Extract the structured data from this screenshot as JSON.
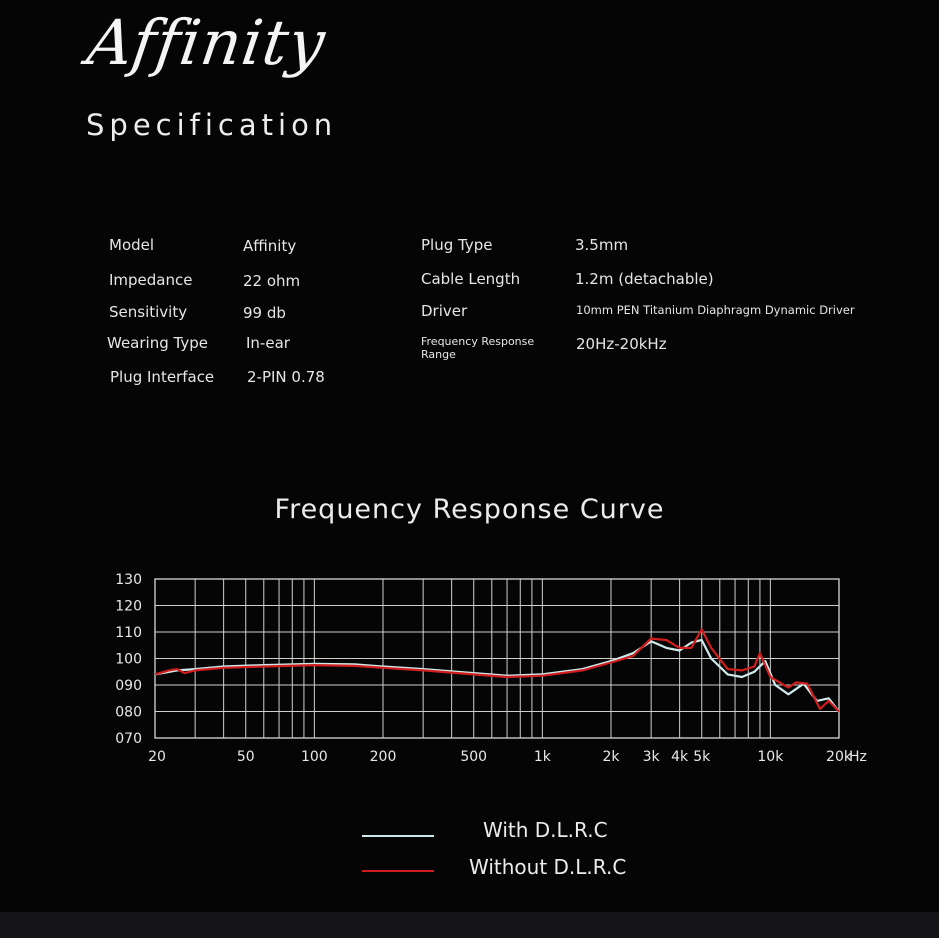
{
  "brand": "Affinity",
  "heading": "Specification",
  "specs_left": [
    {
      "label": "Model",
      "value": "Affinity"
    },
    {
      "label": "Impedance",
      "value": "22 ohm"
    },
    {
      "label": "Sensitivity",
      "value": "99 db"
    },
    {
      "label": "Wearing Type",
      "value": "In-ear"
    },
    {
      "label": "Plug Interface",
      "value": "2-PIN  0.78"
    }
  ],
  "specs_right": [
    {
      "label": "Plug Type",
      "value": "3.5mm"
    },
    {
      "label": "Cable Length",
      "value": "1.2m (detachable)"
    },
    {
      "label": "Driver",
      "value": "10mm PEN Titanium Diaphragm Dynamic Driver"
    },
    {
      "label": "Frequency Response Range",
      "value": "20Hz-20kHz"
    }
  ],
  "chart_data": {
    "type": "line",
    "title": "Frequency Response Curve",
    "x_scale": "log",
    "xlim": [
      20,
      20000
    ],
    "ylim": [
      70,
      130
    ],
    "grid": true,
    "x_ticks": [
      {
        "value": 20,
        "label": "20"
      },
      {
        "value": 50,
        "label": "50"
      },
      {
        "value": 100,
        "label": "100"
      },
      {
        "value": 200,
        "label": "200"
      },
      {
        "value": 500,
        "label": "500"
      },
      {
        "value": 1000,
        "label": "1k"
      },
      {
        "value": 2000,
        "label": "2k"
      },
      {
        "value": 3000,
        "label": "3k"
      },
      {
        "value": 4000,
        "label": "4k"
      },
      {
        "value": 5000,
        "label": "5k"
      },
      {
        "value": 10000,
        "label": "10k"
      },
      {
        "value": 20000,
        "label": "20k"
      }
    ],
    "x_unit": "Hz",
    "y_ticks": [
      {
        "value": 130,
        "label": "130"
      },
      {
        "value": 120,
        "label": "120"
      },
      {
        "value": 110,
        "label": "110"
      },
      {
        "value": 100,
        "label": "100"
      },
      {
        "value": 90,
        "label": "090"
      },
      {
        "value": 80,
        "label": "080"
      },
      {
        "value": 70,
        "label": "070"
      }
    ],
    "legend_position": "bottom-center",
    "series": [
      {
        "name": "With D.L.R.C",
        "color": "#cfe9ea",
        "points": [
          [
            20,
            94
          ],
          [
            25,
            95.5
          ],
          [
            30,
            96
          ],
          [
            40,
            97
          ],
          [
            60,
            97.5
          ],
          [
            100,
            98
          ],
          [
            150,
            97.8
          ],
          [
            200,
            97
          ],
          [
            300,
            96
          ],
          [
            500,
            94.5
          ],
          [
            700,
            93.5
          ],
          [
            1000,
            94
          ],
          [
            1500,
            96
          ],
          [
            2000,
            99
          ],
          [
            2500,
            102
          ],
          [
            3000,
            106.5
          ],
          [
            3500,
            104
          ],
          [
            4000,
            103
          ],
          [
            4500,
            106
          ],
          [
            5000,
            107
          ],
          [
            5500,
            100
          ],
          [
            6500,
            94
          ],
          [
            7500,
            93
          ],
          [
            8500,
            95
          ],
          [
            9500,
            99
          ],
          [
            10500,
            90
          ],
          [
            12000,
            86.5
          ],
          [
            14000,
            90.5
          ],
          [
            16000,
            84
          ],
          [
            18000,
            85
          ],
          [
            20000,
            80
          ]
        ]
      },
      {
        "name": "Without D.L.R.C",
        "color": "#d11d1d",
        "points": [
          [
            20,
            94
          ],
          [
            23,
            95.5
          ],
          [
            25,
            96
          ],
          [
            27,
            94.5
          ],
          [
            30,
            95.5
          ],
          [
            40,
            96.5
          ],
          [
            60,
            97
          ],
          [
            100,
            97.5
          ],
          [
            150,
            97.2
          ],
          [
            200,
            96.5
          ],
          [
            300,
            95.5
          ],
          [
            500,
            94
          ],
          [
            700,
            93
          ],
          [
            1000,
            93.5
          ],
          [
            1500,
            95.5
          ],
          [
            2000,
            98.5
          ],
          [
            2500,
            101
          ],
          [
            3000,
            107.5
          ],
          [
            3500,
            107
          ],
          [
            4000,
            104
          ],
          [
            4500,
            104
          ],
          [
            5000,
            111
          ],
          [
            5500,
            104
          ],
          [
            6500,
            96
          ],
          [
            7500,
            95.5
          ],
          [
            8500,
            97
          ],
          [
            9000,
            102
          ],
          [
            10000,
            93
          ],
          [
            12000,
            89
          ],
          [
            13000,
            91
          ],
          [
            14500,
            90.5
          ],
          [
            16500,
            81
          ],
          [
            18000,
            84
          ],
          [
            20000,
            80
          ]
        ]
      }
    ]
  }
}
